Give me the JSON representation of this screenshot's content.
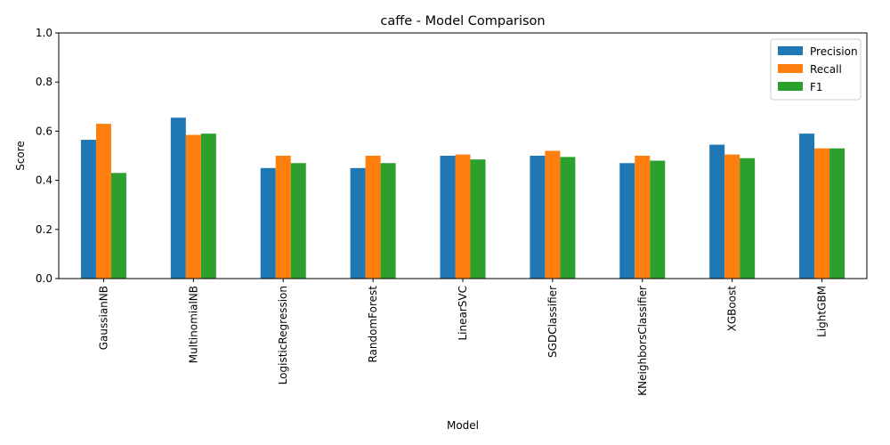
{
  "chart_data": {
    "type": "bar",
    "title": "caffe - Model Comparison",
    "xlabel": "Model",
    "ylabel": "Score",
    "ylim": [
      0,
      1.0
    ],
    "yticks": [
      "0.0",
      "0.2",
      "0.4",
      "0.6",
      "0.8",
      "1.0"
    ],
    "grid": false,
    "legend_position": "top-right",
    "categories": [
      "GaussianNB",
      "MultinomialNB",
      "LogisticRegression",
      "RandomForest",
      "LinearSVC",
      "SGDClassifier",
      "KNeighborsClassifier",
      "XGBoost",
      "LightGBM"
    ],
    "series": [
      {
        "name": "Precision",
        "color": "#1f77b4",
        "values": [
          0.565,
          0.655,
          0.45,
          0.45,
          0.5,
          0.5,
          0.47,
          0.545,
          0.59
        ]
      },
      {
        "name": "Recall",
        "color": "#ff7f0e",
        "values": [
          0.63,
          0.585,
          0.5,
          0.5,
          0.505,
          0.52,
          0.5,
          0.505,
          0.53
        ]
      },
      {
        "name": "F1",
        "color": "#2ca02c",
        "values": [
          0.43,
          0.59,
          0.47,
          0.47,
          0.485,
          0.495,
          0.48,
          0.49,
          0.53
        ]
      }
    ]
  }
}
